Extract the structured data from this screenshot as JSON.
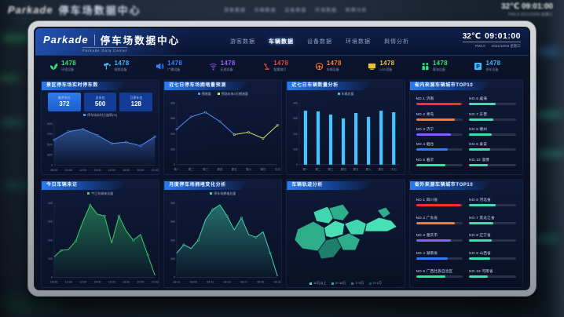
{
  "background": {
    "logo": "Parkade",
    "title": "停车场数据中心",
    "nav": "游客数据    车辆数据    设备数据    环境数据    舆情分析",
    "temp": "32℃",
    "time": "09:01:00",
    "meta": "PM2.8   2021/10/06 星期三"
  },
  "header": {
    "logo": "Parkade",
    "title": "停车场数据中心",
    "subtitle": "Parkade Data Center",
    "nav": [
      {
        "label": "游客数据",
        "active": false
      },
      {
        "label": "车辆数据",
        "active": true
      },
      {
        "label": "设备数据",
        "active": false
      },
      {
        "label": "环境数据",
        "active": false
      },
      {
        "label": "舆情分析",
        "active": false
      }
    ],
    "temp": "32℃",
    "time": "09:01:00",
    "pm": "PM2.8",
    "date": "2021/10/06 星期三"
  },
  "stats": [
    {
      "icon": "leaf-icon",
      "value": "1478",
      "label": "环境设备",
      "color": "#2ee573"
    },
    {
      "icon": "camera-icon",
      "value": "1478",
      "label": "视频设备",
      "color": "#39b9ff"
    },
    {
      "icon": "speaker-icon",
      "value": "1478",
      "label": "广播设备",
      "color": "#3f7dff"
    },
    {
      "icon": "wifi-icon",
      "value": "1478",
      "label": "无线设备",
      "color": "#9b5cff"
    },
    {
      "icon": "lamp-icon",
      "value": "1478",
      "label": "智慧路灯",
      "color": "#e8453c"
    },
    {
      "icon": "steering-wheel-icon",
      "value": "1478",
      "label": "车辆设备",
      "color": "#ff7a2f"
    },
    {
      "icon": "led-screen-icon",
      "value": "1478",
      "label": "LED设备",
      "color": "#e8c235"
    },
    {
      "icon": "people-icon",
      "value": "1478",
      "label": "客流设备",
      "color": "#2ee573"
    },
    {
      "icon": "parking-icon",
      "value": "1478",
      "label": "停车设备",
      "color": "#39b9ff"
    }
  ],
  "panels": {
    "a": {
      "title": "景区停车场实时停车数",
      "boxes": [
        {
          "label": "剩余车位",
          "value": "372",
          "highlight": true
        },
        {
          "label": "总车位",
          "value": "500",
          "highlight": false
        },
        {
          "label": "已停车位",
          "value": "128",
          "highlight": false
        }
      ]
    },
    "b": {
      "title": "近七日停车场拥堵量预测"
    },
    "c": {
      "title": "近七日车辆数量分析"
    },
    "d": {
      "title": "省内来源车辆城市TOP10",
      "items": [
        {
          "rank": "NO.1",
          "name": "济南",
          "pct": 96,
          "color": "#ff2e2e"
        },
        {
          "rank": "NO.2",
          "name": "青岛",
          "pct": 82,
          "color": "#ff7a2f"
        },
        {
          "rank": "NO.3",
          "name": "济宁",
          "pct": 74,
          "color": "#8a5cff"
        },
        {
          "rank": "NO.4",
          "name": "烟台",
          "pct": 68,
          "color": "#2f7bff"
        },
        {
          "rank": "NO.5",
          "name": "临沂",
          "pct": 62,
          "color": "#2ee5a0"
        },
        {
          "rank": "NO.6",
          "name": "威海",
          "pct": 56,
          "color": "#3fe0b0"
        },
        {
          "rank": "NO.7",
          "name": "东营",
          "pct": 52,
          "color": "#3fe0b0"
        },
        {
          "rank": "NO.8",
          "name": "德州",
          "pct": 48,
          "color": "#3fe0b0"
        },
        {
          "rank": "NO.9",
          "name": "泰安",
          "pct": 44,
          "color": "#3fe0b0"
        },
        {
          "rank": "NO.10",
          "name": "淄博",
          "pct": 40,
          "color": "#3fe0b0"
        }
      ]
    },
    "e": {
      "title": "今日车辆来访"
    },
    "f": {
      "title": "月度停车场拥堵变化分析"
    },
    "g": {
      "title": "车辆轨迹分析",
      "legend": [
        {
          "label": "10万以上",
          "color": "#49e0b6"
        },
        {
          "label": "5~10万",
          "color": "#2fae8c"
        },
        {
          "label": "1~5万",
          "color": "#1e7f68"
        },
        {
          "label": "0~1万",
          "color": "#145a4c"
        }
      ]
    },
    "h": {
      "title": "省外来源车辆城市TOP10",
      "items": [
        {
          "rank": "NO.1",
          "name": "四川省",
          "pct": 96,
          "color": "#ff2e2e"
        },
        {
          "rank": "NO.2",
          "name": "广东省",
          "pct": 82,
          "color": "#ff7a2f"
        },
        {
          "rank": "NO.3",
          "name": "重庆市",
          "pct": 74,
          "color": "#8a5cff"
        },
        {
          "rank": "NO.4",
          "name": "湖南省",
          "pct": 68,
          "color": "#2f7bff"
        },
        {
          "rank": "NO.5",
          "name": "广西壮族自治区",
          "pct": 62,
          "color": "#2ee5a0"
        },
        {
          "rank": "NO.6",
          "name": "河北省",
          "pct": 56,
          "color": "#3fe0b0"
        },
        {
          "rank": "NO.7",
          "name": "黑龙江省",
          "pct": 52,
          "color": "#3fe0b0"
        },
        {
          "rank": "NO.8",
          "name": "辽宁省",
          "pct": 48,
          "color": "#3fe0b0"
        },
        {
          "rank": "NO.9",
          "name": "山西省",
          "pct": 44,
          "color": "#3fe0b0"
        },
        {
          "rank": "NO.10",
          "name": "河南省",
          "pct": 40,
          "color": "#3fe0b0"
        }
      ]
    }
  },
  "chart_data": [
    {
      "id": "occupancy",
      "type": "line",
      "fill": true,
      "title": "景区停车场实时停车数",
      "x": [
        "08:00",
        "10:00",
        "12:00",
        "14:00",
        "16:00",
        "18:00",
        "20:00",
        "22:00"
      ],
      "series": [
        {
          "name": "停车场实时占道率(%)",
          "color": "#4f8df5",
          "values": [
            55,
            73,
            78,
            65,
            47,
            50,
            42,
            62
          ]
        }
      ],
      "ymax": 90,
      "yticks": [
        "90%",
        "70%",
        "50%",
        "30%",
        "0"
      ]
    },
    {
      "id": "congestion-forecast",
      "type": "line",
      "points": 8,
      "title": "近七日停车场拥堵量预测",
      "x": [
        "周一",
        "周二",
        "周三",
        "周四",
        "周五",
        "周六",
        "周日",
        "今日"
      ],
      "series": [
        {
          "name": "拥堵量",
          "color": "#4f8df5",
          "start": 0,
          "values": [
            230,
            310,
            340,
            280,
            195
          ]
        },
        {
          "name": "预测未来3天拥堵量",
          "color": "#c6e86f",
          "start": 4,
          "values": [
            195,
            210,
            170,
            255
          ]
        }
      ],
      "ymax": 400,
      "yticks": [
        "400",
        "300",
        "200",
        "100",
        "0"
      ]
    },
    {
      "id": "vehicle-count",
      "type": "bar",
      "title": "近七日车辆数量分析",
      "x": [
        "周一",
        "周二",
        "周三",
        "周四",
        "周五",
        "周六",
        "周日",
        "今日"
      ],
      "series": [
        {
          "name": "车辆总量",
          "color": "#3ec6ff",
          "values": [
            350,
            345,
            325,
            300,
            335,
            310,
            350,
            340
          ]
        }
      ],
      "ymax": 400,
      "yticks": [
        "400",
        "300",
        "200",
        "100",
        "0"
      ]
    },
    {
      "id": "today-visits",
      "type": "area",
      "title": "今日车辆来访",
      "x": [
        "08:00",
        "10:00",
        "12:00",
        "14:00",
        "16:00",
        "18:00",
        "20:00",
        "22:00"
      ],
      "series": [
        {
          "name": "今日车辆来访量",
          "color": "#35d06a",
          "values": [
            110,
            145,
            150,
            195,
            300,
            390,
            340,
            330,
            185,
            330,
            250,
            200,
            230,
            120,
            10
          ]
        }
      ],
      "ymax": 400,
      "yticks": [
        "400",
        "300",
        "200",
        "100",
        "0"
      ]
    },
    {
      "id": "monthly-congestion",
      "type": "area",
      "title": "月度停车场拥堵变化分析",
      "x": [
        "08-01",
        "08-06",
        "08-11",
        "08-16",
        "08-21",
        "08-26",
        "08-31"
      ],
      "series": [
        {
          "name": "停车场拥堵总量",
          "color": "#3fd6b0",
          "values": [
            130,
            175,
            155,
            200,
            310,
            365,
            390,
            330,
            255,
            320,
            230,
            215,
            245,
            130,
            5
          ]
        }
      ],
      "ymax": 400,
      "yticks": [
        "400",
        "300",
        "200",
        "100",
        "0"
      ]
    }
  ]
}
